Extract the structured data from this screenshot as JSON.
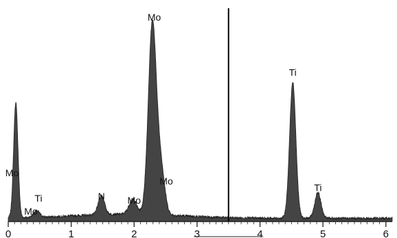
{
  "chart_data": {
    "type": "area",
    "title": "",
    "xlabel": "",
    "ylabel": "",
    "xlim": [
      0,
      6.1
    ],
    "ylim": [
      0,
      1.0
    ],
    "x_ticks": [
      "0",
      "1",
      "2",
      "3",
      "4",
      "5",
      "6"
    ],
    "marker_line_x": 3.5,
    "grid": false,
    "colors": {
      "fill": "#444444",
      "outline": "#222222",
      "marker": "#000000",
      "axis": "#222222"
    },
    "peaks": [
      {
        "center": 0.12,
        "height": 0.54,
        "width": 0.035
      },
      {
        "center": 0.45,
        "height": 0.03,
        "width": 0.05
      },
      {
        "center": 1.48,
        "height": 0.09,
        "width": 0.05
      },
      {
        "center": 1.98,
        "height": 0.07,
        "width": 0.06
      },
      {
        "center": 2.29,
        "height": 0.9,
        "width": 0.065
      },
      {
        "center": 2.43,
        "height": 0.2,
        "width": 0.06
      },
      {
        "center": 4.52,
        "height": 0.64,
        "width": 0.05
      },
      {
        "center": 4.92,
        "height": 0.12,
        "width": 0.05
      }
    ],
    "baseline": 0.015,
    "annotations": [
      {
        "text": "Mo",
        "x": 2.32,
        "y": 0.93
      },
      {
        "text": "Ti",
        "x": 4.52,
        "y": 0.67
      },
      {
        "text": "Mo",
        "x": 0.06,
        "y": 0.2
      },
      {
        "text": "Mo",
        "x": 2.51,
        "y": 0.16
      },
      {
        "text": "Ti",
        "x": 0.48,
        "y": 0.08
      },
      {
        "text": "N",
        "x": 1.48,
        "y": 0.09
      },
      {
        "text": "Mo",
        "x": 2.0,
        "y": 0.07
      },
      {
        "text": "Ti",
        "x": 4.92,
        "y": 0.13
      },
      {
        "text": "Mo",
        "x": 0.36,
        "y": 0.02
      }
    ]
  }
}
